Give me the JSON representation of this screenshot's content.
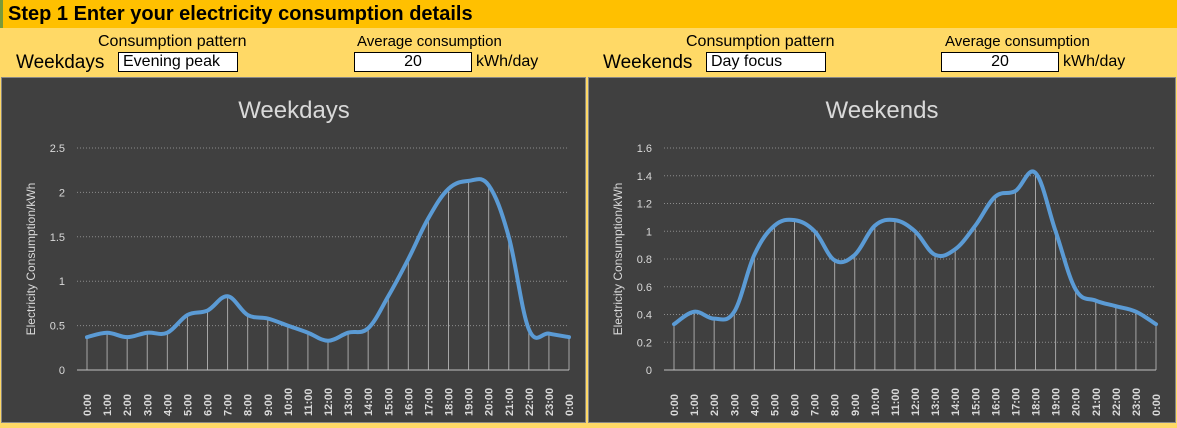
{
  "header": {
    "title": "Step 1 Enter your electricity consumption details"
  },
  "weekdays_controls": {
    "row_label": "Weekdays",
    "pattern_label": "Consumption pattern",
    "pattern_value": "Evening peak",
    "avg_label": "Average consumption",
    "avg_value": "20",
    "unit": "kWh/day"
  },
  "weekends_controls": {
    "row_label": "Weekends",
    "pattern_label": "Consumption pattern",
    "pattern_value": "Day focus",
    "avg_label": "Average consumption",
    "avg_value": "20",
    "unit": "kWh/day"
  },
  "chart_data": [
    {
      "type": "line",
      "title": "Weekdays",
      "xlabel": "",
      "ylabel": "Electricity Consumption/kWh",
      "ylim": [
        0,
        2.5
      ],
      "yticks": [
        0,
        0.5,
        1,
        1.5,
        2,
        2.5
      ],
      "grid": true,
      "categories": [
        "0:00",
        "1:00",
        "2:00",
        "3:00",
        "4:00",
        "5:00",
        "6:00",
        "7:00",
        "8:00",
        "9:00",
        "10:00",
        "11:00",
        "12:00",
        "13:00",
        "14:00",
        "15:00",
        "16:00",
        "17:00",
        "18:00",
        "19:00",
        "20:00",
        "21:00",
        "22:00",
        "23:00",
        "0:00"
      ],
      "series": [
        {
          "values": [
            0.37,
            0.42,
            0.37,
            0.42,
            0.42,
            0.62,
            0.67,
            0.83,
            0.62,
            0.58,
            0.5,
            0.42,
            0.33,
            0.42,
            0.47,
            0.83,
            1.25,
            1.71,
            2.04,
            2.13,
            2.08,
            1.5,
            0.46,
            0.41,
            0.37
          ],
          "color": "#5b9bd5"
        }
      ]
    },
    {
      "type": "line",
      "title": "Weekends",
      "xlabel": "",
      "ylabel": "Electricity Consumption/kWh",
      "ylim": [
        0,
        1.6
      ],
      "yticks": [
        0,
        0.2,
        0.4,
        0.6,
        0.8,
        1,
        1.2,
        1.4,
        1.6
      ],
      "grid": true,
      "categories": [
        "0:00",
        "1:00",
        "2:00",
        "3:00",
        "4:00",
        "5:00",
        "6:00",
        "7:00",
        "8:00",
        "9:00",
        "10:00",
        "11:00",
        "12:00",
        "13:00",
        "14:00",
        "15:00",
        "16:00",
        "17:00",
        "18:00",
        "19:00",
        "20:00",
        "21:00",
        "22:00",
        "23:00",
        "0:00"
      ],
      "series": [
        {
          "values": [
            0.33,
            0.42,
            0.37,
            0.42,
            0.83,
            1.04,
            1.08,
            1.0,
            0.79,
            0.83,
            1.04,
            1.08,
            1.0,
            0.83,
            0.87,
            1.04,
            1.25,
            1.29,
            1.42,
            1.0,
            0.58,
            0.5,
            0.46,
            0.42,
            0.33
          ],
          "color": "#5b9bd5"
        }
      ]
    }
  ]
}
